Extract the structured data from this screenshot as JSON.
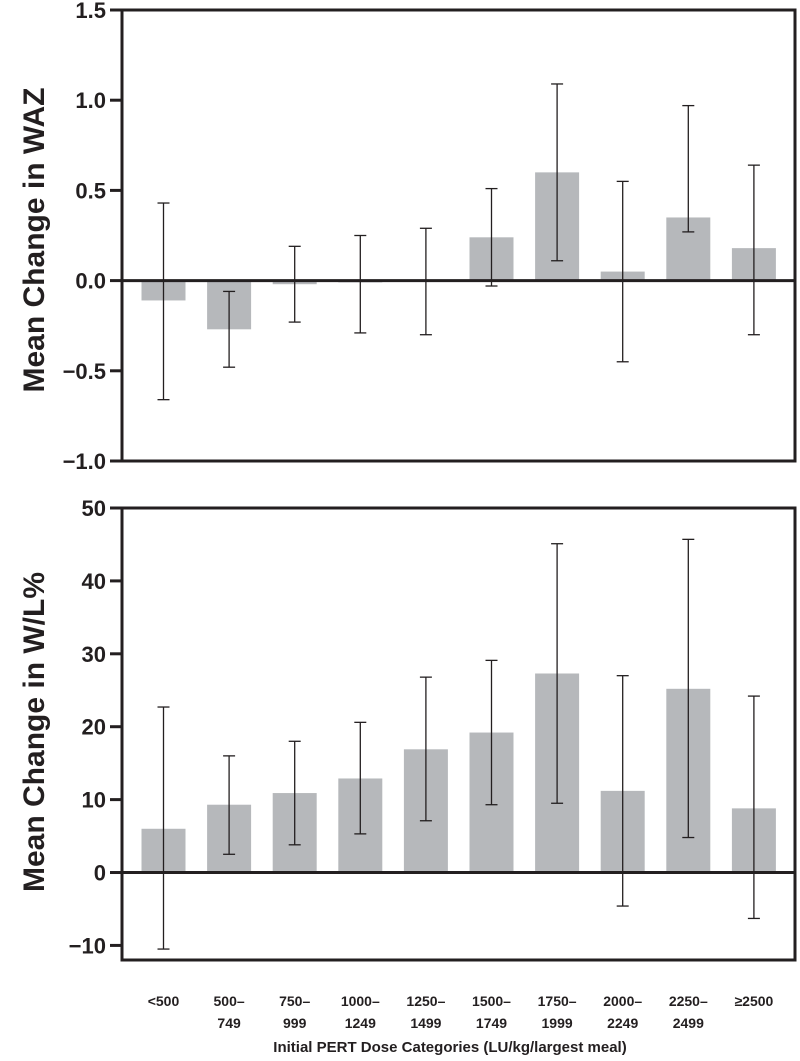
{
  "chart_data": [
    {
      "type": "bar",
      "title": "",
      "ylabel": "Mean Change in WAZ",
      "xlabel": "",
      "ylim": [
        -1.0,
        1.5
      ],
      "yticks": [
        "1.5",
        "1.0",
        "0.5",
        "0.0",
        "−0.5",
        "−1.0"
      ],
      "ytick_values": [
        1.5,
        1.0,
        0.5,
        0.0,
        -0.5,
        -1.0
      ],
      "categories": [
        "<500",
        "500–749",
        "750–999",
        "1000–1249",
        "1250–1499",
        "1500–1749",
        "1750–1999",
        "2000–2249",
        "2250–2499",
        "≥2500"
      ],
      "values": [
        -0.11,
        -0.27,
        -0.02,
        -0.01,
        0.0,
        0.24,
        0.6,
        0.05,
        0.35,
        0.18
      ],
      "error_low": [
        -0.66,
        -0.48,
        -0.23,
        -0.29,
        -0.3,
        -0.03,
        0.11,
        -0.45,
        0.27,
        -0.3
      ],
      "error_high": [
        0.43,
        -0.06,
        0.19,
        0.25,
        0.29,
        0.51,
        1.09,
        0.55,
        0.97,
        0.64
      ],
      "bar_color": "#b6b8bb"
    },
    {
      "type": "bar",
      "title": "",
      "ylabel": "Mean Change in W/L%",
      "xlabel": "Initial PERT Dose Categories (LU/kg/largest meal)",
      "ylim": [
        -12,
        50
      ],
      "yticks": [
        "50",
        "40",
        "30",
        "20",
        "10",
        "0",
        "−10"
      ],
      "ytick_values": [
        50,
        40,
        30,
        20,
        10,
        0,
        -10
      ],
      "categories": [
        "<500",
        "500–749",
        "750–999",
        "1000–1249",
        "1250–1499",
        "1500–1749",
        "1750–1999",
        "2000–2249",
        "2250–2499",
        "≥2500"
      ],
      "category_lines": [
        [
          "<500",
          ""
        ],
        [
          "500–",
          "749"
        ],
        [
          "750–",
          "999"
        ],
        [
          "1000–",
          "1249"
        ],
        [
          "1250–",
          "1499"
        ],
        [
          "1500–",
          "1749"
        ],
        [
          "1750–",
          "1999"
        ],
        [
          "2000–",
          "2249"
        ],
        [
          "2250–",
          "2499"
        ],
        [
          "≥2500",
          ""
        ]
      ],
      "values": [
        6.0,
        9.3,
        10.9,
        12.9,
        16.9,
        19.2,
        27.3,
        11.2,
        25.2,
        8.8
      ],
      "error_low": [
        -10.5,
        2.5,
        3.8,
        5.3,
        7.1,
        9.3,
        9.5,
        -4.6,
        4.8,
        -6.3
      ],
      "error_high": [
        22.7,
        16.0,
        18.0,
        20.6,
        26.8,
        29.1,
        45.1,
        27.0,
        45.7,
        24.2
      ],
      "bar_color": "#b6b8bb"
    }
  ],
  "colors": {
    "axis": "#231f20",
    "bar": "#b6b8bb",
    "background": "#ffffff"
  }
}
